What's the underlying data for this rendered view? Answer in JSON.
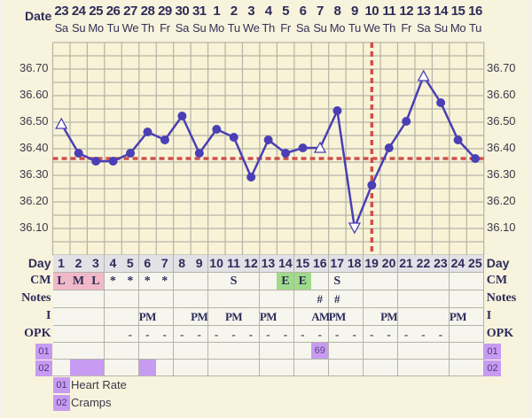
{
  "header": {
    "date_label": "Date",
    "dates": [
      "23",
      "24",
      "25",
      "26",
      "27",
      "28",
      "29",
      "30",
      "31",
      "1",
      "2",
      "3",
      "4",
      "5",
      "6",
      "7",
      "8",
      "9",
      "10",
      "11",
      "12",
      "13",
      "14",
      "15",
      "16"
    ],
    "weekdays": [
      "Sa",
      "Su",
      "Mo",
      "Tu",
      "We",
      "Th",
      "Fr",
      "Sa",
      "Su",
      "Mo",
      "Tu",
      "We",
      "Th",
      "Fr",
      "Sa",
      "Su",
      "Mo",
      "Tu",
      "We",
      "Th",
      "Fr",
      "Sa",
      "Su",
      "Mo",
      "Tu"
    ]
  },
  "y_ticks": [
    "36.70",
    "36.60",
    "36.50",
    "36.40",
    "36.30",
    "36.20",
    "36.10"
  ],
  "chart_data": {
    "type": "line",
    "title": "",
    "xlabel": "Day",
    "ylabel": "Temperature",
    "x": [
      1,
      2,
      3,
      4,
      5,
      6,
      7,
      8,
      9,
      10,
      11,
      12,
      13,
      14,
      15,
      16,
      17,
      18,
      19,
      20,
      21,
      22,
      23,
      24,
      25
    ],
    "series": [
      {
        "name": "Temperature",
        "color": "#4a3fb5",
        "values": [
          36.49,
          36.38,
          36.35,
          36.35,
          36.38,
          36.46,
          36.43,
          36.52,
          36.38,
          36.47,
          36.44,
          36.29,
          36.43,
          36.38,
          36.4,
          36.4,
          36.54,
          36.1,
          36.26,
          36.4,
          36.5,
          36.67,
          36.57,
          36.43,
          36.36
        ],
        "markers": [
          "triangle-up",
          "dot",
          "dot",
          "dot",
          "dot",
          "dot",
          "dot",
          "dot",
          "dot",
          "dot",
          "dot",
          "dot",
          "dot",
          "dot",
          "dot",
          "triangle-up",
          "dot",
          "triangle-down",
          "dot",
          "dot",
          "dot",
          "triangle-up",
          "dot",
          "dot",
          "dot"
        ]
      }
    ],
    "coverline": 36.36,
    "ovulation_day": 19,
    "ylim": [
      36.0,
      36.8
    ],
    "grid": true,
    "y_ticks": [
      36.1,
      36.2,
      36.3,
      36.4,
      36.5,
      36.6,
      36.7
    ]
  },
  "table": {
    "labels": {
      "day": "Day",
      "cm": "CM",
      "notes": "Notes",
      "i": "I",
      "opk": "OPK",
      "c1": "01",
      "c2": "02"
    },
    "days": [
      "1",
      "2",
      "3",
      "4",
      "5",
      "6",
      "7",
      "8",
      "9",
      "10",
      "11",
      "12",
      "13",
      "14",
      "15",
      "16",
      "17",
      "18",
      "19",
      "20",
      "21",
      "22",
      "23",
      "24",
      "25"
    ],
    "cm": [
      "L",
      "M",
      "L",
      "*",
      "*",
      "*",
      "*",
      "",
      "",
      "",
      "S",
      "",
      "",
      "E",
      "E",
      "",
      "S",
      "",
      "",
      "",
      "",
      "",
      "",
      "",
      ""
    ],
    "cm_colors": [
      "pink",
      "pink",
      "pink",
      "",
      "",
      "",
      "",
      "",
      "",
      "",
      "",
      "",
      "",
      "green",
      "green",
      "",
      "",
      "",
      "",
      "",
      "",
      "",
      "",
      "",
      ""
    ],
    "notes": [
      "",
      "",
      "",
      "",
      "",
      "",
      "",
      "",
      "",
      "",
      "",
      "",
      "",
      "",
      "",
      "#",
      "#",
      "",
      "",
      "",
      "",
      "",
      "",
      "",
      ""
    ],
    "intercourse": [
      "",
      "",
      "",
      "",
      "",
      "PM",
      "",
      "",
      "PM",
      "",
      "PM",
      "",
      "PM",
      "",
      "",
      "AM",
      "PM",
      "",
      "",
      "PM",
      "",
      "",
      "",
      "PM",
      ""
    ],
    "opk": [
      "",
      "",
      "",
      "",
      "-",
      "-",
      "-",
      "-",
      "-",
      "-",
      "-",
      "-",
      "-",
      "-",
      "-",
      "-",
      "-",
      "-",
      "-",
      "-",
      "-",
      "-",
      "-",
      "",
      ""
    ],
    "custom1": [
      "",
      "",
      "",
      "",
      "",
      "",
      "",
      "",
      "",
      "",
      "",
      "",
      "",
      "",
      "",
      "69",
      "",
      "",
      "",
      "",
      "",
      "",
      "",
      "",
      ""
    ],
    "custom1_hl": [
      false,
      false,
      false,
      false,
      false,
      false,
      false,
      false,
      false,
      false,
      false,
      false,
      false,
      false,
      false,
      true,
      false,
      false,
      false,
      false,
      false,
      false,
      false,
      false,
      false
    ],
    "custom2_hl": [
      false,
      true,
      true,
      false,
      false,
      true,
      false,
      false,
      false,
      false,
      false,
      false,
      false,
      false,
      false,
      false,
      false,
      false,
      false,
      false,
      false,
      false,
      false,
      false,
      false
    ]
  },
  "legend": [
    {
      "code": "01",
      "label": "Heart Rate"
    },
    {
      "code": "02",
      "label": "Cramps"
    }
  ],
  "colors": {
    "line": "#4a3fb5",
    "coverline": "#d0504a",
    "grid": "#b5b3a8",
    "custom_tag": "#c89bf2",
    "cm_pink": "#f0b8c8",
    "cm_green": "#9fdb8a"
  }
}
